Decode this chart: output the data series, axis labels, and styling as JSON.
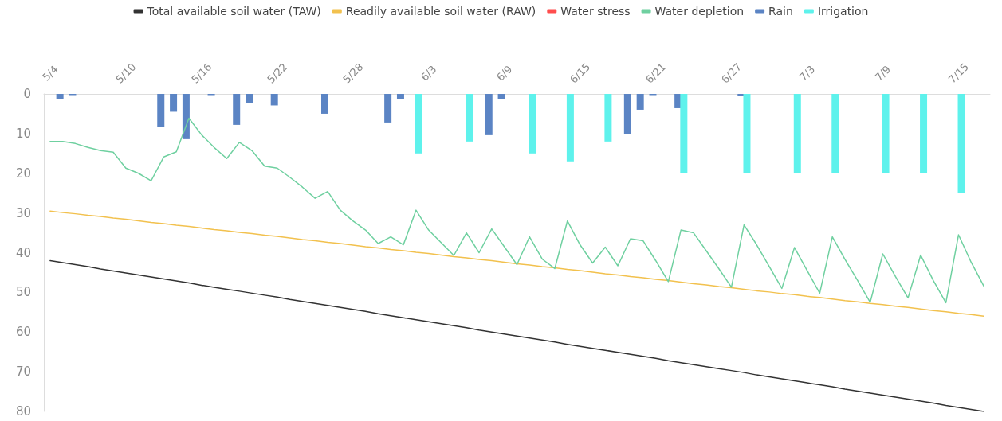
{
  "chart_data": {
    "type": "line",
    "categories": [
      "5/4",
      null,
      null,
      null,
      null,
      null,
      "5/10",
      null,
      null,
      null,
      null,
      null,
      "5/16",
      null,
      null,
      null,
      null,
      null,
      "5/22",
      null,
      null,
      null,
      null,
      null,
      "5/28",
      null,
      null,
      null,
      null,
      null,
      "6/3",
      null,
      null,
      null,
      null,
      null,
      "6/9",
      null,
      null,
      null,
      null,
      null,
      "6/15",
      null,
      null,
      null,
      null,
      null,
      "6/21",
      null,
      null,
      null,
      null,
      null,
      "6/27",
      null,
      null,
      null,
      null,
      null,
      "7/3",
      null,
      null,
      null,
      null,
      null,
      "7/9",
      null,
      null,
      null,
      null,
      null,
      "7/15",
      null,
      null
    ],
    "series": [
      {
        "name": "Total available soil water (TAW)",
        "color": "#333333",
        "values": [
          42.0,
          42.5,
          43.0,
          43.5,
          44.1,
          44.6,
          45.1,
          45.6,
          46.1,
          46.6,
          47.1,
          47.6,
          48.2,
          48.7,
          49.2,
          49.7,
          50.2,
          50.7,
          51.2,
          51.8,
          52.3,
          52.8,
          53.3,
          53.8,
          54.3,
          54.8,
          55.4,
          55.9,
          56.4,
          56.9,
          57.4,
          57.9,
          58.4,
          58.9,
          59.5,
          60.0,
          60.5,
          61.0,
          61.5,
          62.0,
          62.5,
          63.1,
          63.6,
          64.1,
          64.6,
          65.1,
          65.6,
          66.1,
          66.6,
          67.2,
          67.7,
          68.2,
          68.7,
          69.2,
          69.7,
          70.2,
          70.8,
          71.3,
          71.8,
          72.3,
          72.8,
          73.3,
          73.8,
          74.4,
          74.9,
          75.4,
          75.9,
          76.4,
          76.9,
          77.4,
          77.9,
          78.5,
          79.0,
          79.5,
          80.0
        ]
      },
      {
        "name": "Readily available soil water (RAW)",
        "color": "#f2c14e",
        "values": [
          29.5,
          29.9,
          30.2,
          30.6,
          30.9,
          31.3,
          31.6,
          32.0,
          32.4,
          32.7,
          33.1,
          33.4,
          33.8,
          34.2,
          34.5,
          34.9,
          35.2,
          35.6,
          35.9,
          36.3,
          36.7,
          37.0,
          37.4,
          37.7,
          38.1,
          38.5,
          38.8,
          39.2,
          39.5,
          39.9,
          40.2,
          40.6,
          41.0,
          41.3,
          41.7,
          42.0,
          42.4,
          42.8,
          43.1,
          43.5,
          43.8,
          44.2,
          44.5,
          44.9,
          45.3,
          45.6,
          46.0,
          46.3,
          46.7,
          47.0,
          47.4,
          47.8,
          48.1,
          48.5,
          48.8,
          49.2,
          49.6,
          49.9,
          50.3,
          50.6,
          51.0,
          51.3,
          51.7,
          52.1,
          52.4,
          52.8,
          53.1,
          53.5,
          53.8,
          54.2,
          54.6,
          54.9,
          55.3,
          55.6,
          56.0
        ]
      },
      {
        "name": "Water stress",
        "color": "#ff4d4d",
        "values": [
          null,
          null,
          null,
          null,
          null,
          null,
          null,
          null,
          null,
          null,
          null,
          null,
          null,
          null,
          null,
          null,
          null,
          null,
          null,
          null,
          null,
          null,
          null,
          null,
          null,
          null,
          null,
          null,
          null,
          null,
          null,
          null,
          null,
          null,
          null,
          null,
          null,
          null,
          null,
          null,
          null,
          null,
          null,
          null,
          null,
          null,
          null,
          null,
          null,
          null,
          null,
          null,
          null,
          null,
          null,
          null,
          null,
          null,
          null,
          null,
          null,
          null,
          null,
          null,
          null,
          null,
          null,
          null,
          null,
          null,
          null,
          null,
          null,
          null,
          null
        ]
      },
      {
        "name": "Water depletion",
        "color": "#6fd0a0",
        "values": [
          12,
          12,
          12.5,
          13.5,
          14.3,
          14.7,
          18.7,
          20,
          21.9,
          15.9,
          14.6,
          6.1,
          10.3,
          13.5,
          16.3,
          12.2,
          14.3,
          18.2,
          18.7,
          21,
          23.5,
          26.3,
          24.6,
          29.3,
          32,
          34.3,
          37.7,
          36,
          38,
          29.3,
          34.3,
          37.5,
          40.7,
          35,
          40,
          34,
          38.5,
          43,
          36,
          41.6,
          44,
          32,
          38,
          42.6,
          38.6,
          43.3,
          36.5,
          37,
          42,
          47.3,
          34.3,
          35,
          39.5,
          44,
          48.7,
          33,
          38,
          43.5,
          49,
          38.7,
          44.5,
          50.2,
          36,
          41.7,
          47,
          52.5,
          40.3,
          46,
          51.4,
          40.6,
          47,
          52.6,
          35.5,
          42.4,
          48.4
        ]
      },
      {
        "name": "Rain",
        "type": "bar",
        "color": "#5b84c4",
        "values": [
          null,
          1.2,
          0.3,
          null,
          null,
          null,
          null,
          null,
          null,
          8.4,
          4.5,
          11.4,
          null,
          0.3,
          null,
          7.8,
          2.4,
          null,
          2.9,
          null,
          null,
          null,
          5,
          null,
          null,
          null,
          null,
          7.2,
          1.3,
          null,
          null,
          null,
          null,
          null,
          null,
          10.4,
          1.3,
          null,
          null,
          null,
          null,
          null,
          null,
          null,
          null,
          null,
          10.2,
          4,
          0.3,
          null,
          3.6,
          null,
          null,
          null,
          null,
          0.5,
          null,
          null,
          null,
          null,
          null,
          null,
          null,
          null,
          null,
          null,
          null,
          null,
          null,
          null,
          null,
          null,
          null,
          null,
          null
        ]
      },
      {
        "name": "Irrigation",
        "type": "bar",
        "color": "#5ef2ec",
        "values": [
          null,
          null,
          null,
          null,
          null,
          null,
          null,
          null,
          null,
          null,
          null,
          null,
          null,
          null,
          null,
          null,
          null,
          null,
          null,
          null,
          null,
          null,
          null,
          null,
          null,
          null,
          null,
          null,
          null,
          15,
          null,
          null,
          null,
          12,
          null,
          null,
          null,
          null,
          15,
          null,
          null,
          17,
          null,
          null,
          12,
          null,
          null,
          null,
          null,
          null,
          20,
          null,
          null,
          null,
          null,
          20,
          null,
          null,
          null,
          20,
          null,
          null,
          20,
          null,
          null,
          null,
          20,
          null,
          null,
          20,
          null,
          null,
          25,
          null,
          null
        ]
      }
    ],
    "ylim": [
      80,
      0
    ],
    "yticks": [
      0,
      10,
      20,
      30,
      40,
      50,
      60,
      70,
      80
    ],
    "grid": false,
    "legend": "top",
    "marker": "none",
    "line_style": "solid"
  }
}
